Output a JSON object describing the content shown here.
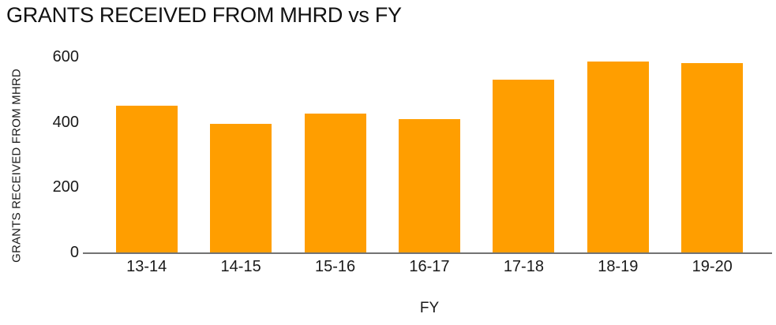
{
  "chart_data": {
    "type": "bar",
    "title": "GRANTS RECEIVED FROM MHRD vs FY",
    "xlabel": "FY",
    "ylabel": "GRANTS RECEIVED FROM MHRD",
    "categories": [
      "13-14",
      "14-15",
      "15-16",
      "16-17",
      "17-18",
      "18-19",
      "19-20"
    ],
    "values": [
      450,
      395,
      425,
      410,
      530,
      585,
      580
    ],
    "ylim": [
      0,
      600
    ],
    "yticks": [
      0,
      200,
      400,
      600
    ],
    "grid": false,
    "legend": false,
    "legend_position": "none",
    "bar_color": "#ff9e00",
    "axis_line_color": "#737373",
    "text_color": "#1a1a1a",
    "background_color": "#ffffff"
  }
}
